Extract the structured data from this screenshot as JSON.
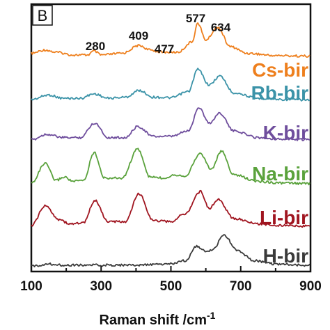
{
  "chart_data": {
    "type": "line",
    "panel_label": "B",
    "xlabel": "Raman shift /cm",
    "xlabel_superscript": "-1",
    "ylabel": "",
    "xlim": [
      100,
      900
    ],
    "x_ticks": [
      "100",
      "300",
      "500",
      "700",
      "900"
    ],
    "y_ticks_shown": false,
    "grid": false,
    "legend": "inline labels at right of each trace",
    "peak_labels": [
      "280",
      "409",
      "477",
      "577",
      "634"
    ],
    "series": [
      {
        "name": "Cs-bir",
        "color": "#ee7f1d",
        "x": [
          100,
          140,
          170,
          220,
          260,
          280,
          300,
          360,
          409,
          440,
          477,
          520,
          560,
          577,
          600,
          634,
          670,
          720,
          800,
          900
        ],
        "values": [
          0.08,
          0.14,
          0.1,
          0.05,
          0.05,
          0.12,
          0.05,
          0.08,
          0.22,
          0.14,
          0.1,
          0.1,
          0.28,
          0.62,
          0.32,
          0.55,
          0.2,
          0.08,
          0.04,
          0.03
        ]
      },
      {
        "name": "Rb-bir",
        "color": "#3b93a8",
        "x": [
          100,
          150,
          190,
          240,
          280,
          320,
          370,
          409,
          450,
          500,
          550,
          577,
          610,
          640,
          680,
          750,
          820,
          900
        ],
        "values": [
          0.04,
          0.12,
          0.06,
          0.06,
          0.14,
          0.06,
          0.08,
          0.2,
          0.08,
          0.07,
          0.18,
          0.58,
          0.3,
          0.46,
          0.16,
          0.06,
          0.04,
          0.03
        ]
      },
      {
        "name": "K-bir",
        "color": "#6f4e9d",
        "x": [
          100,
          145,
          190,
          240,
          282,
          320,
          370,
          405,
          450,
          500,
          550,
          580,
          610,
          640,
          680,
          750,
          820,
          900
        ],
        "values": [
          0.04,
          0.14,
          0.08,
          0.08,
          0.34,
          0.08,
          0.08,
          0.28,
          0.1,
          0.1,
          0.2,
          0.62,
          0.34,
          0.52,
          0.2,
          0.08,
          0.05,
          0.04
        ]
      },
      {
        "name": "Na-bir",
        "color": "#5aa23c",
        "x": [
          100,
          140,
          170,
          195,
          220,
          250,
          280,
          310,
          360,
          405,
          440,
          480,
          510,
          540,
          585,
          615,
          645,
          680,
          750,
          820,
          900
        ],
        "values": [
          0.05,
          0.4,
          0.1,
          0.16,
          0.08,
          0.1,
          0.6,
          0.14,
          0.14,
          0.66,
          0.16,
          0.14,
          0.2,
          0.18,
          0.58,
          0.3,
          0.62,
          0.2,
          0.08,
          0.05,
          0.04
        ]
      },
      {
        "name": "Li-bir",
        "color": "#a01520",
        "x": [
          100,
          140,
          180,
          210,
          250,
          282,
          320,
          370,
          408,
          450,
          500,
          540,
          585,
          610,
          635,
          680,
          750,
          820,
          900
        ],
        "values": [
          0.05,
          0.4,
          0.16,
          0.08,
          0.1,
          0.5,
          0.12,
          0.12,
          0.62,
          0.14,
          0.12,
          0.26,
          0.66,
          0.36,
          0.52,
          0.18,
          0.08,
          0.05,
          0.04
        ]
      },
      {
        "name": "H-bir",
        "color": "#3a3a3a",
        "x": [
          100,
          150,
          200,
          300,
          400,
          500,
          540,
          575,
          600,
          620,
          652,
          690,
          740,
          800,
          900
        ],
        "values": [
          0.02,
          0.06,
          0.04,
          0.04,
          0.04,
          0.06,
          0.12,
          0.38,
          0.28,
          0.32,
          0.58,
          0.3,
          0.12,
          0.06,
          0.04
        ]
      }
    ]
  }
}
